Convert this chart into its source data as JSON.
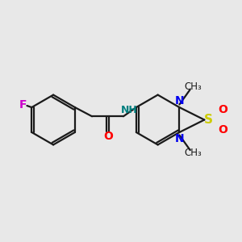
{
  "bg_color": "#e8e8e8",
  "bond_color": "#1a1a1a",
  "F_color": "#cc00cc",
  "O_color": "#ff0000",
  "S_color": "#cccc00",
  "N_color": "#0000ee",
  "NH_color": "#008080",
  "figsize": [
    3.0,
    3.0
  ],
  "dpi": 100,
  "xlim": [
    0,
    10
  ],
  "ylim": [
    0,
    10
  ]
}
